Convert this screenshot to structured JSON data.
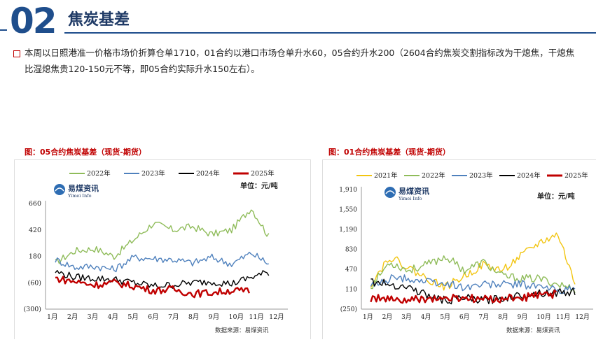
{
  "header": {
    "number": "02",
    "title": "焦炭基差"
  },
  "bullet": {
    "text": "本周以日照港准一价格市场价折算仓单1710，01合约以港口市场仓单升水60，05合约升水200（2604合约焦炭交割指标改为干熄焦，干熄焦比湿熄焦贵120-150元不等，即05合约实际升水150左右）。"
  },
  "logo": {
    "cn": "易煤资讯",
    "en": "Yimei Info"
  },
  "charts": {
    "left": {
      "caption": "图：05合约焦炭基差（现货-期货）",
      "unit": "单位：元/吨",
      "source": "数据来源：易煤资讯",
      "legend": [
        "2022年",
        "2023年",
        "2024年",
        "2025年"
      ],
      "yticks": [
        "660",
        "420",
        "180",
        "(60)",
        "(300)"
      ],
      "xticks": [
        "1月",
        "2月",
        "3月",
        "4月",
        "5月",
        "6月",
        "7月",
        "8月",
        "9月",
        "10月",
        "11月",
        "12月"
      ]
    },
    "right": {
      "caption": "图：01合约焦炭基差（现货-期货）",
      "unit": "单位：元/吨",
      "source": "数据来源：易煤资讯",
      "legend": [
        "2021年",
        "2022年",
        "2023年",
        "2024年",
        "2025年"
      ],
      "yticks": [
        "1,910",
        "1,550",
        "1,190",
        "830",
        "470",
        "110",
        "(250)"
      ],
      "xticks": [
        "1月",
        "2月",
        "3月",
        "4月",
        "5月",
        "6月",
        "7月",
        "8月",
        "9月",
        "10月",
        "11月",
        "12月"
      ]
    }
  },
  "chart_data": [
    {
      "type": "line",
      "title": "图：05合约焦炭基差（现货-期货）",
      "ylabel": "单位：元/吨",
      "ylim": [
        -300,
        660
      ],
      "x": [
        "1月",
        "2月",
        "3月",
        "4月",
        "5月",
        "6月",
        "7月",
        "8月",
        "9月",
        "10月",
        "11月",
        "12月"
      ],
      "series": [
        {
          "name": "2022年",
          "color": "#8fbc5a",
          "values": [
            120,
            230,
            250,
            180,
            330,
            480,
            420,
            450,
            380,
            420,
            620,
            330
          ]
        },
        {
          "name": "2023年",
          "color": "#4f81bd",
          "values": [
            150,
            80,
            90,
            60,
            170,
            160,
            150,
            120,
            170,
            110,
            210,
            100
          ]
        },
        {
          "name": "2024年",
          "color": "#000000",
          "values": [
            40,
            -10,
            -20,
            -30,
            -60,
            -90,
            -80,
            -60,
            -50,
            -70,
            -10,
            40
          ]
        },
        {
          "name": "2025年",
          "color": "#c00000",
          "values": [
            -20,
            -50,
            -80,
            -60,
            -90,
            -130,
            -120,
            -160,
            -150,
            -130,
            -140,
            null
          ]
        }
      ]
    },
    {
      "type": "line",
      "title": "图：01合约焦炭基差（现货-期货）",
      "ylabel": "单位：元/吨",
      "ylim": [
        -250,
        1910
      ],
      "x": [
        "1月",
        "2月",
        "3月",
        "4月",
        "5月",
        "6月",
        "7月",
        "8月",
        "9月",
        "10月",
        "11月",
        "12月"
      ],
      "series": [
        {
          "name": "2021年",
          "color": "#f2c511",
          "values": [
            200,
            700,
            500,
            300,
            150,
            350,
            550,
            450,
            700,
            950,
            1100,
            100
          ]
        },
        {
          "name": "2022年",
          "color": "#8fbc5a",
          "values": [
            150,
            600,
            450,
            550,
            700,
            450,
            600,
            350,
            300,
            300,
            200,
            100
          ]
        },
        {
          "name": "2023年",
          "color": "#4f81bd",
          "values": [
            150,
            300,
            300,
            250,
            200,
            150,
            200,
            200,
            200,
            150,
            100,
            100
          ]
        },
        {
          "name": "2024年",
          "color": "#000000",
          "values": [
            250,
            200,
            150,
            0,
            -100,
            -50,
            -100,
            -50,
            0,
            50,
            50,
            60
          ]
        },
        {
          "name": "2025年",
          "color": "#c00000",
          "values": [
            -50,
            -80,
            -100,
            -60,
            -70,
            -50,
            -80,
            -60,
            -50,
            0,
            20,
            null
          ]
        }
      ]
    }
  ]
}
